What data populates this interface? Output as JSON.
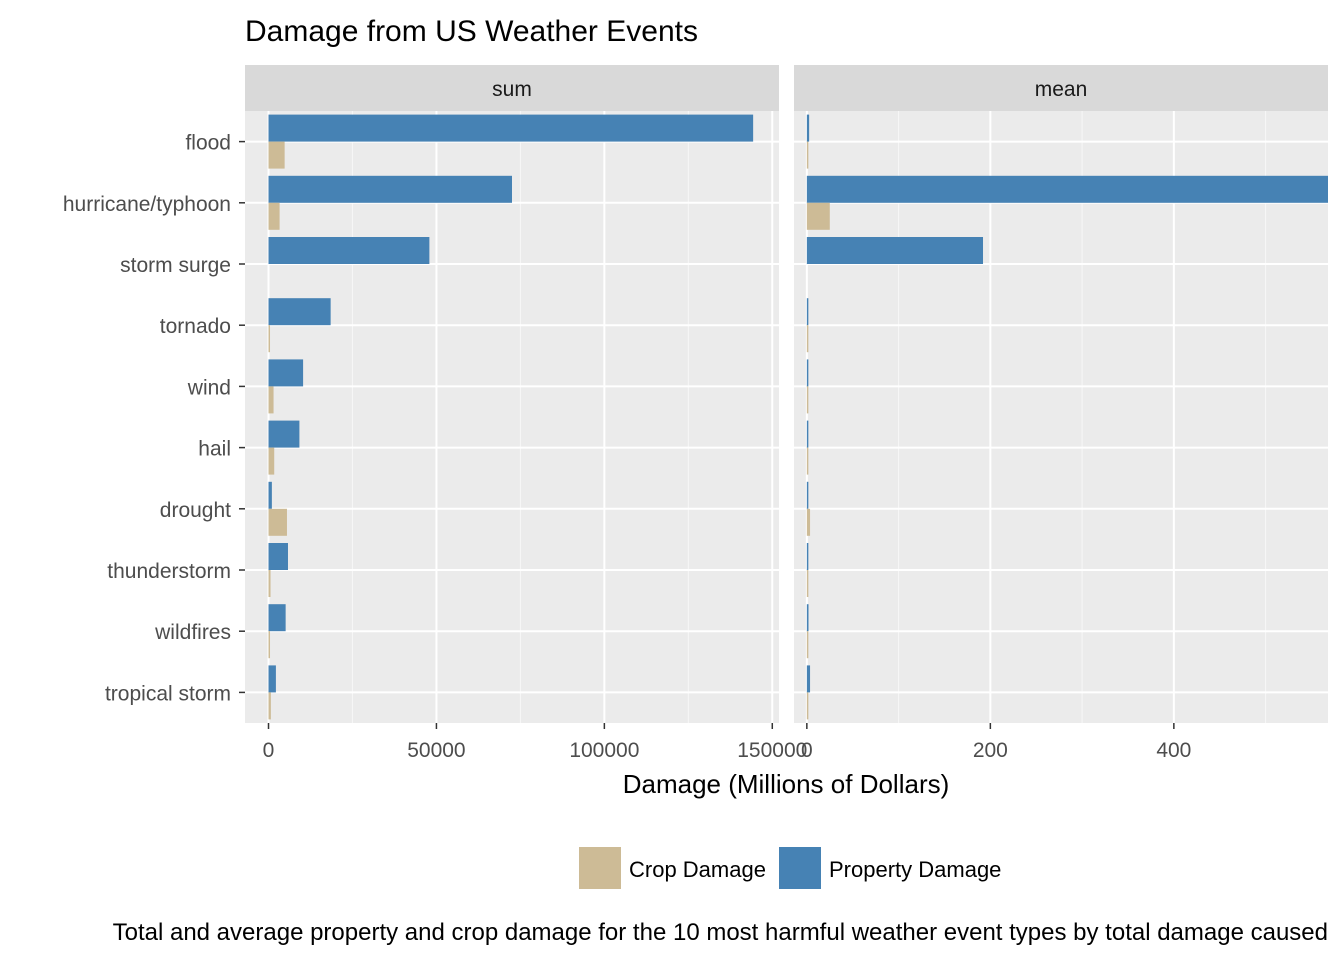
{
  "chart_data": {
    "type": "bar",
    "title": "Damage from US Weather Events",
    "xlabel": "Damage (Millions of Dollars)",
    "ylabel": "",
    "caption": "Total and average property and crop damage for the 10 most harmful weather event types by total damage caused",
    "categories": [
      "flood",
      "hurricane/typhoon",
      "storm surge",
      "tornado",
      "wind",
      "hail",
      "drought",
      "thunderstorm",
      "wildfires",
      "tropical storm"
    ],
    "legend": {
      "position": "bottom",
      "entries": [
        "Crop Damage",
        "Property Damage"
      ]
    },
    "colors": {
      "crop": "#CDBB96",
      "property": "#4682B4"
    },
    "grid": true,
    "panels": [
      {
        "strip_label": "sum",
        "xlim": [
          -7000,
          152000
        ],
        "x_ticks": [
          0,
          50000,
          100000,
          150000
        ],
        "x_tick_labels": [
          "0",
          "50000",
          "100000",
          "150000"
        ],
        "series": [
          {
            "name": "Property Damage",
            "values": [
              144300,
              72500,
              47900,
              18500,
              10300,
              9200,
              1000,
              5800,
              5100,
              2200
            ]
          },
          {
            "name": "Crop Damage",
            "values": [
              4800,
              3300,
              0,
              400,
              1500,
              1700,
              5500,
              600,
              400,
              700
            ]
          }
        ]
      },
      {
        "strip_label": "mean",
        "xlim": [
          -14,
          568
        ],
        "x_ticks": [
          0,
          200,
          400
        ],
        "x_tick_labels": [
          "0",
          "200",
          "400"
        ],
        "series": [
          {
            "name": "Property Damage",
            "values": [
              2.5,
              568,
              192,
              1.5,
              0.5,
              0.3,
              0.2,
              0.1,
              1.8,
              3.5
            ]
          },
          {
            "name": "Crop Damage",
            "values": [
              0.2,
              25,
              0,
              0.1,
              0.1,
              0.1,
              3.5,
              0.1,
              0.1,
              0.3
            ]
          }
        ]
      }
    ]
  }
}
